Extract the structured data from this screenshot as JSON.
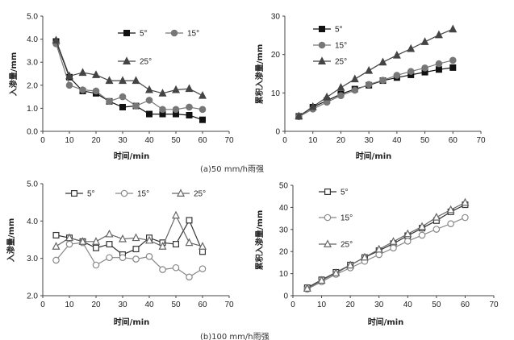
{
  "chart_data": [
    {
      "type": "line",
      "ylabel": "入渗量/mm",
      "xlabel": "时间/min",
      "xlim": [
        0,
        70
      ],
      "xticks": [
        0,
        10,
        20,
        30,
        40,
        50,
        60,
        70
      ],
      "ylim": [
        0,
        5
      ],
      "yticks": [
        "0.0",
        "1.0",
        "2.0",
        "3.0",
        "4.0",
        "5.0"
      ],
      "legend": "top-right, stacked",
      "series": [
        {
          "name": "5°",
          "marker": "square-filled",
          "x": [
            5,
            10,
            15,
            20,
            25,
            30,
            35,
            40,
            45,
            50,
            55,
            60
          ],
          "y": [
            3.9,
            2.35,
            1.75,
            1.65,
            1.3,
            1.05,
            1.1,
            0.75,
            0.75,
            0.75,
            0.7,
            0.5
          ]
        },
        {
          "name": "15°",
          "marker": "circle-filled",
          "x": [
            5,
            10,
            15,
            20,
            25,
            30,
            35,
            40,
            45,
            50,
            55,
            60
          ],
          "y": [
            3.8,
            2.0,
            1.8,
            1.75,
            1.3,
            1.5,
            1.1,
            1.35,
            0.95,
            0.95,
            1.05,
            0.95
          ]
        },
        {
          "name": "25°",
          "marker": "triangle-filled",
          "x": [
            5,
            10,
            15,
            20,
            25,
            30,
            35,
            40,
            45,
            50,
            55,
            60
          ],
          "y": [
            3.95,
            2.4,
            2.55,
            2.45,
            2.2,
            2.2,
            2.2,
            1.8,
            1.65,
            1.8,
            1.85,
            1.55
          ]
        }
      ]
    },
    {
      "type": "line",
      "ylabel": "累积入渗量/mm",
      "xlabel": "时间/min",
      "xlim": [
        0,
        70
      ],
      "xticks": [
        0,
        10,
        20,
        30,
        40,
        50,
        60,
        70
      ],
      "ylim": [
        0,
        30
      ],
      "yticks": [
        "0",
        "10",
        "20",
        "30"
      ],
      "legend": "top-left, stacked",
      "series": [
        {
          "name": "5°",
          "marker": "square-filled",
          "x": [
            5,
            10,
            15,
            20,
            25,
            30,
            35,
            40,
            45,
            50,
            55,
            60
          ],
          "y": [
            3.9,
            6.3,
            8.0,
            9.7,
            11.0,
            12.0,
            13.2,
            14.0,
            14.7,
            15.4,
            16.1,
            16.6
          ]
        },
        {
          "name": "15°",
          "marker": "circle-filled",
          "x": [
            5,
            10,
            15,
            20,
            25,
            30,
            35,
            40,
            45,
            50,
            55,
            60
          ],
          "y": [
            3.8,
            5.8,
            7.6,
            9.3,
            10.7,
            12.2,
            13.3,
            14.6,
            15.6,
            16.5,
            17.6,
            18.5
          ]
        },
        {
          "name": "25°",
          "marker": "triangle-filled",
          "x": [
            5,
            10,
            15,
            20,
            25,
            30,
            35,
            40,
            45,
            50,
            55,
            60
          ],
          "y": [
            3.95,
            6.4,
            8.9,
            11.4,
            13.6,
            15.8,
            18.0,
            19.8,
            21.5,
            23.3,
            25.1,
            26.6
          ]
        }
      ]
    },
    {
      "type": "line",
      "ylabel": "入渗量/mm",
      "xlabel": "时间/min",
      "xlim": [
        0,
        70
      ],
      "xticks": [
        0,
        10,
        20,
        30,
        40,
        50,
        60,
        70
      ],
      "ylim": [
        2,
        5
      ],
      "yticks": [
        "2.0",
        "3.0",
        "4.0",
        "5.0"
      ],
      "legend": "top, single row",
      "series": [
        {
          "name": "5°",
          "marker": "square-open",
          "x": [
            5,
            10,
            15,
            20,
            25,
            30,
            35,
            40,
            45,
            50,
            55,
            60
          ],
          "y": [
            3.62,
            3.55,
            3.45,
            3.28,
            3.38,
            3.1,
            3.25,
            3.55,
            3.42,
            3.38,
            4.02,
            3.18
          ]
        },
        {
          "name": "15°",
          "marker": "circle-open",
          "x": [
            5,
            10,
            15,
            20,
            25,
            30,
            35,
            40,
            45,
            50,
            55,
            60
          ],
          "y": [
            2.95,
            3.38,
            3.42,
            2.82,
            3.02,
            3.02,
            2.98,
            3.05,
            2.7,
            2.75,
            2.5,
            2.72
          ]
        },
        {
          "name": "25°",
          "marker": "triangle-open",
          "x": [
            5,
            10,
            15,
            20,
            25,
            30,
            35,
            40,
            45,
            50,
            55,
            60
          ],
          "y": [
            3.32,
            3.55,
            3.45,
            3.45,
            3.65,
            3.52,
            3.55,
            3.48,
            3.32,
            4.15,
            3.42,
            3.32
          ]
        }
      ]
    },
    {
      "type": "line",
      "ylabel": "累积入渗量/mm",
      "xlabel": "时间/min",
      "xlim": [
        0,
        70
      ],
      "xticks": [
        0,
        10,
        20,
        30,
        40,
        50,
        60,
        70
      ],
      "ylim": [
        0,
        50
      ],
      "yticks": [
        "0",
        "10",
        "20",
        "30",
        "40",
        "50"
      ],
      "legend": "left, stacked",
      "series": [
        {
          "name": "5°",
          "marker": "square-open",
          "x": [
            5,
            10,
            15,
            20,
            25,
            30,
            35,
            40,
            45,
            50,
            55,
            60
          ],
          "y": [
            3.6,
            7.2,
            10.6,
            13.9,
            17.3,
            20.4,
            23.6,
            27.2,
            30.6,
            34.0,
            38.0,
            41.2
          ]
        },
        {
          "name": "15°",
          "marker": "circle-open",
          "x": [
            5,
            10,
            15,
            20,
            25,
            30,
            35,
            40,
            45,
            50,
            55,
            60
          ],
          "y": [
            2.95,
            6.3,
            9.7,
            12.6,
            15.6,
            18.6,
            21.6,
            24.7,
            27.4,
            30.1,
            32.6,
            35.4
          ]
        },
        {
          "name": "25°",
          "marker": "triangle-open",
          "x": [
            5,
            10,
            15,
            20,
            25,
            30,
            35,
            40,
            45,
            50,
            55,
            60
          ],
          "y": [
            3.3,
            6.9,
            10.3,
            13.8,
            17.4,
            21.0,
            24.5,
            28.0,
            31.3,
            35.5,
            38.9,
            42.2
          ]
        }
      ]
    }
  ],
  "captions": {
    "top": "(a)50 mm/h雨强",
    "bottom": "(b)100 mm/h雨强"
  }
}
